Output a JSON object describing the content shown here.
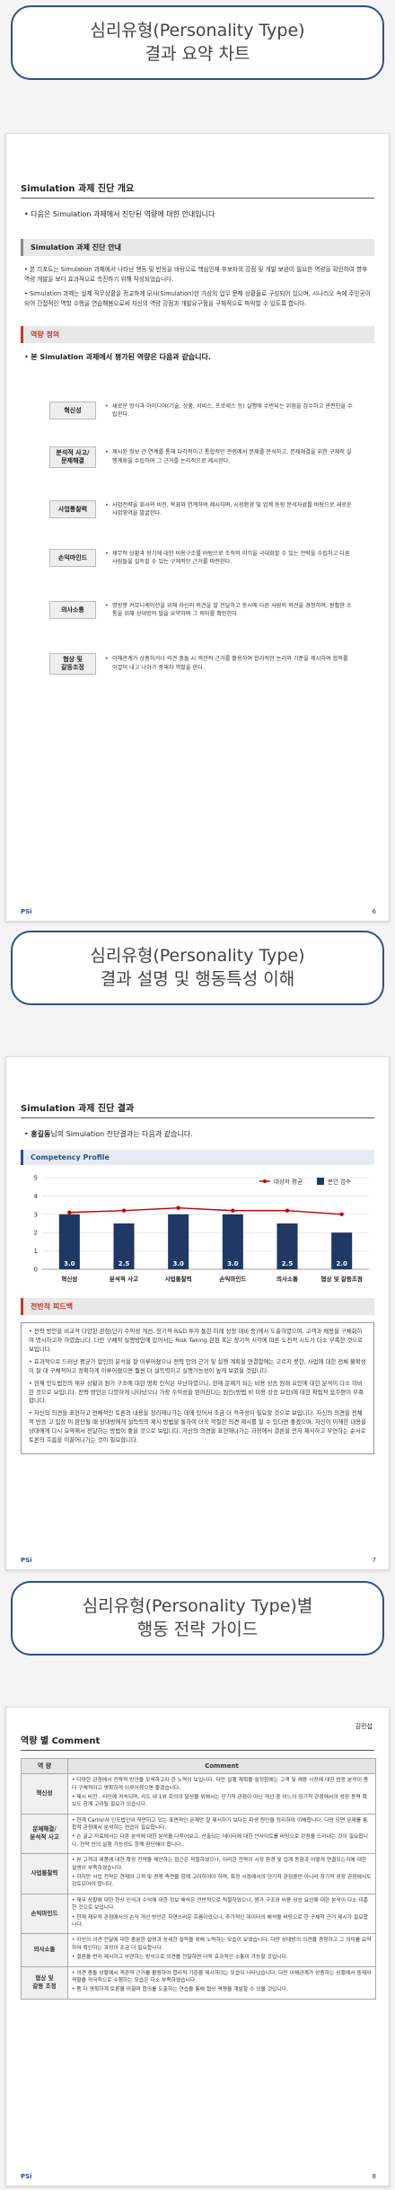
{
  "banner1": "심리유형(Personality Type)\n결과 요약 차트",
  "page1": {
    "title": "Simulation 과제 진단 개요",
    "intro": "다음은 Simulation 과제에서 진단된 역량에 대한 안내입니다",
    "sec1": "Simulation 과제 진단 안내",
    "guide": [
      "본 리포트는 Simulation 과제에서 나타난 행동 및 반응을 바탕으로 핵심인재 후보자의 강점 및 개발 보완이 필요한 역량을 확인하여 향후 역량 개발을 보다 효과적으로 촉진하기 위해 작성되었습니다.",
      "Simulation 과제는 실제 직무상황을 정교하게 모사(Simulation)한 가상의 업무 문제 상황들로 구성되어 있으며, 시나리오 속에 주인공이 되어 간접적인 역할 수행을 연습해봄으로써 자신의 역량 강점과 개발요구점을 구체적으로 파악할 수 있도록 합니다."
    ],
    "sec2": "역량 정의",
    "def_intro": "본 Simulation 과제에서 평가된 역량은 다음과 같습니다.",
    "competencies": [
      {
        "name": "혁신성",
        "desc": "새로운 방식과 아이디어(기술, 상품, 서비스, 프로세스 등) 실행에 수반되는 위험을 감수하고 관련인을 수립한다."
      },
      {
        "name": "분석적 사고/\n문제해결",
        "desc": "제시된 정보 간 연계를 통해 다각적이고 통합적인 관점에서 문제를 분석하고, 문제해결을 위한 구체적 실행계획을 수립하며 그 근거를 논리적으로 제시한다."
      },
      {
        "name": "사업통찰력",
        "desc": "사업전략을 회사의 비전, 목표와 연계하여 제시하며, 시장환경 및 업계 동향 분석자료를 바탕으로 새로운 사업영역을 발굴한다."
      },
      {
        "name": "손익마인드",
        "desc": "재무적 상황과 장기에 대한 비용구조를 바탕으로 조직의 이익을 극대화할 수 있는 전략을 수립하고 다른 사람들을 설득할 수 있는 구체적인 근거를 마련한다."
      },
      {
        "name": "의사소통",
        "desc": "명방향 커뮤니케이션을 위해 자신의 의견을 잘 전달하고 동시에 다른 사람의 의견을 경청하며, 원활한 소통을 위해 상대방의 말을 요약하며 그 의미를 확인한다."
      },
      {
        "name": "협상 및\n갈등조정",
        "desc": "이해관계가 상충하거나 의견 충돌 시 객관적 근거를 활용하여 합리적인 논리와 기준을 제시하여 합의를 이끌어 내고 나아가 중재자 역할을 한다."
      }
    ],
    "page_num": "6"
  },
  "footer_logo": "PSi",
  "banner2": "심리유형(Personality Type)\n결과 설명 및 행동특성 이해",
  "page2": {
    "title": "Simulation 과제 진단 결과",
    "intro_name": "홍길동",
    "intro_rest": "님의 Simulation 진단결과는 다음과 같습니다.",
    "chart_header": "Competency Profile",
    "sec_feedback": "전반적 피드백",
    "feedback": [
      "전략 방안을 비교적 다양한 관점(단기 수익성 개선, 장기적 R&D 투자 통한 미래 성장 대비 등)에서 도출하였으며, 고객과 채용을 구체화하여 명시하고자 하였습니다. 다만 구체적 실행방안에 있어서는 Risk Taking 관점 혹은 장기적 시각에 따른 도전적 시도가 다소 부족한 것으로 보입니다.",
      "효과적으로 드러난 평균가 합인의 분석을 잘 이루어졌으나 전략 안의 근거 및 실행 계획을 연결함에는 고르지 못한, 사업에 대한 전체 불확성이 잘 대 구체적이고 정확하게 이루어졌으면 훨씬 더 설득력이고 실행가능성이 높게 보였을 것입니다.",
      "현재 인도법인의 재무 상황과 원가 구조에 대한 명확 인식은 부난하였으나, 현재 문제가 되는 비용 상승 원래 요인에 대한 분석이 다소 미비한 것으로 보입니다. 전략 방안은 다양하게 나타났으나 가장 수익성을 얻어진다는 원인(방법 비 미용 상승 요인)에 대한 확립적 움주편이 부족합니다.",
      "자신의 의견을 표현하고 전체적인 토론의 내용을 정리해나가는 데에 있어서 조금 더 적극성이 필요할 것으로 보입니다. 자신의 의견을 전체적 반응 고 입장 이 판단될 때 상대방에게 설득력의 제시 방법을 통하여 더욱 적절한 의견 제시를 할 수 있다면 좋겠으며, 자신이 이해한 내용을 상대에게 다시 요약해서 전달하는 방법이 좋을 것으로 보입니다. 자신의 의견을 표현해나가는 과정에서 결론을 먼저 제시하고 부연하는 순서로 토론의 흐름을 이끌어나가는 것이 필요합니다."
    ],
    "page_num": "7"
  },
  "chart_data": {
    "type": "bar",
    "categories": [
      "혁신성",
      "분석적 사고",
      "사업통찰력",
      "손익마인드",
      "의사소통",
      "협상 및 갈등조정"
    ],
    "series": [
      {
        "name": "본인 점수",
        "type": "bar",
        "values": [
          3.0,
          2.5,
          3.0,
          3.0,
          2.5,
          2.0
        ]
      },
      {
        "name": "대상자 평균",
        "type": "line",
        "values": [
          3.1,
          3.2,
          3.35,
          3.2,
          3.2,
          3.0
        ]
      }
    ],
    "yticks": [
      0,
      1,
      2,
      3,
      4,
      5
    ],
    "ylim": [
      0,
      5
    ],
    "legend": "top-right",
    "colors": {
      "bar": "#1f3864",
      "line": "#c00000"
    }
  },
  "banner3": "심리유형(Personality Type)별\n행동 전략 가이드",
  "page3": {
    "name": "김민섭",
    "title": "역량 별 Comment",
    "col1": "역 량",
    "col2": "Comment",
    "rows": [
      {
        "name": "혁신성",
        "comments": [
          "다양한 관점에서 전략적 방안을 모색하고자 한 노력이 보입니다. 다만 실행 계획을 설정함에는 고객 및 채용 시장에 대한 반응 분석이 좀 더 구체적이고 명확하게 이루어졌으면 좋겠습니다.",
          "제시 비전 - 타인에 귀속되며, 리도 내 1위 회의의 달성을 위해서는 단기적 관점이 아닌 개선 중 어느의 장기적 관점에서의 성장 동력 확보도 함께 고려될 필요가 있습니다."
        ]
      },
      {
        "name": "문제해결/\n분석적 사고",
        "comments": [
          "현재 Carinn사 인도법인이 직면하고 있는 표면적인 문제만 잘 제시하기 보다는 파생 원인을 정리하여 이해합니다. 다만 당면 문제를 통합적 관점에서 분석하는 연습이 필요합니다.",
          "손 골고 자료에서는 다른 분석에 대한 분석을 다루어보고, 산출되는 데이터에 대한 인사이트를 바탕으로 강점을 드러내는 것이 필요합니다. 전략 안의 실행 가능성도 함께 판단해야 합니다."
        ]
      },
      {
        "name": "사업통찰력",
        "comments": [
          "본 고객과 제품에 대한 확장 전략을 제안하는 접근은 적절하였으나, 이러한 전략이 시장 환경 및 업계 동향과 어떻게 연결되는지에 대한 설명이 부족하였습니다.",
          "하지만 사업 전략은 현재와 고객 및 경쟁 측면을 함께 고려하여야 하며, 특정 시점에서의 단기적 관점뿐만 아니라 장기적 성장 관점에서도 검토되어야 합니다."
        ]
      },
      {
        "name": "손익마인드",
        "comments": [
          "재무 상황에 대한 현상 인식과 수익에 대한 정보 해석은 전반적으로 적절하였으나, 원가 구조와 비용 상승 요인에 대한 분석이 다소 미흡한 것으로 보입니다.",
          "현재 재무적 관점에서의 손익 개선 방안은 자연스러운 흐름이었으나, 추가적인 데이터의 해석을 바탕으로 한 구체적 근거 제시가 필요합니다."
        ]
      },
      {
        "name": "의사소통",
        "comments": [
          "자신의 의견 전달에 대한 충분한 설명과 상세한 설득을 위해 노력하는 모습이 보였습니다. 다만 상대방의 의견을 경청하고 그 의미를 요약하여 확인하는 과정이 조금 더 필요합니다.",
          "결론을 먼저 제시하고 부연하는 방식으로 의견을 전달하면 더욱 효과적인 소통이 가능할 것입니다."
        ]
      },
      {
        "name": "협상 및\n갈등 조정",
        "comments": [
          "의견 충돌 상황에서 객관적 근거를 활용하여 합리적 기준을 제시하려는 모습이 나타났습니다. 다만 이해관계가 상충하는 상황에서 중재자 역할을 적극적으로 수행하는 모습은 다소 부족하였습니다.",
          "좀 더 명확하게 토론을 이끌며 합의를 도출하는 연습을 통해 협상 역량을 개발할 수 있을 것입니다."
        ]
      }
    ],
    "page_num": "8"
  }
}
